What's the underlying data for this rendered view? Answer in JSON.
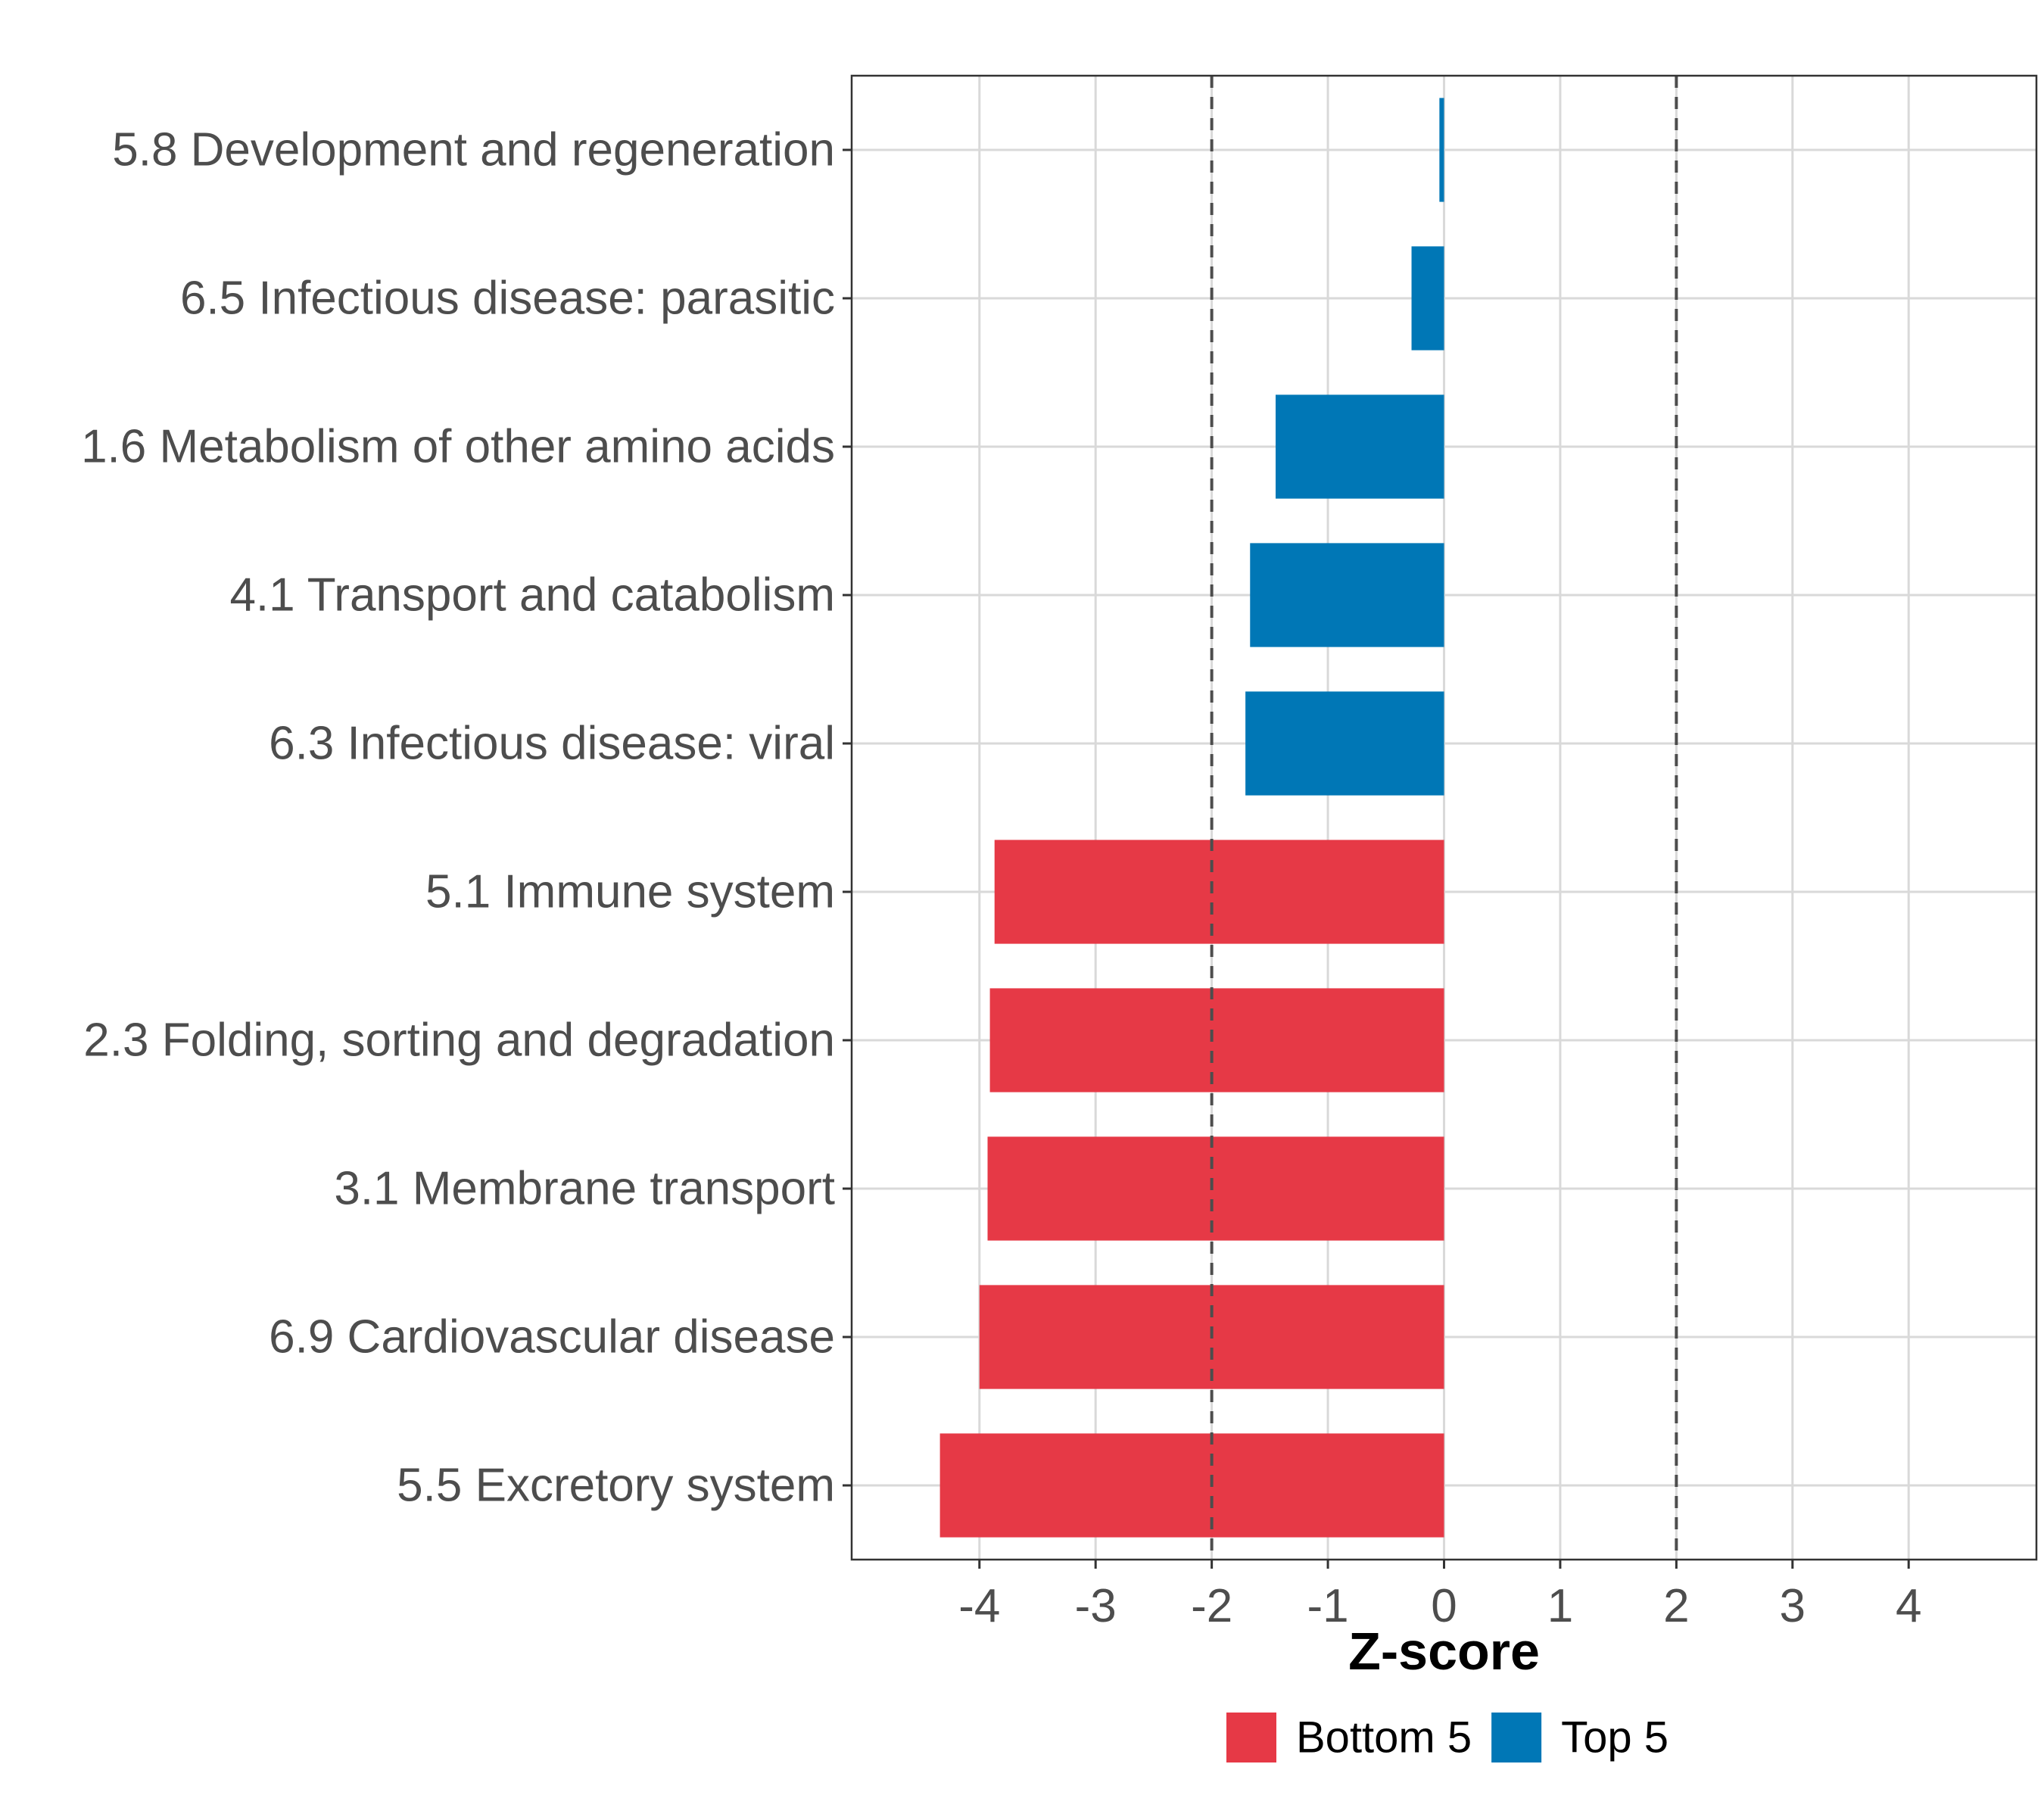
{
  "chart_data": {
    "type": "bar",
    "orientation": "horizontal",
    "title": "",
    "xlabel": "Z-score",
    "ylabel": "",
    "xlim": [
      -5.1,
      5.1
    ],
    "x_ticks": [
      -4,
      -3,
      -2,
      -1,
      0,
      1,
      2,
      3,
      4
    ],
    "x_tick_labels": [
      "-4",
      "-3",
      "-2",
      "-1",
      "0",
      "1",
      "2",
      "3",
      "4"
    ],
    "reference_lines": [
      -2,
      2
    ],
    "grid": true,
    "categories": [
      "5.8 Development and regeneration",
      "6.5 Infectious disease: parasitic",
      "1.6 Metabolism of other amino acids",
      "4.1 Transport and catabolism",
      "6.3 Infectious disease: viral",
      "5.1 Immune system",
      "2.3 Folding, sorting and degradation",
      "3.1 Membrane transport",
      "6.9 Cardiovascular disease",
      "5.5 Excretory system"
    ],
    "values": [
      -0.04,
      -0.28,
      -1.45,
      -1.67,
      -1.71,
      -3.87,
      -3.91,
      -3.93,
      -4.0,
      -4.34
    ],
    "groups": [
      "Top 5",
      "Top 5",
      "Top 5",
      "Top 5",
      "Top 5",
      "Bottom 5",
      "Bottom 5",
      "Bottom 5",
      "Bottom 5",
      "Bottom 5"
    ],
    "legend": {
      "position": "bottom",
      "entries": [
        {
          "label": "Bottom 5",
          "color": "#e63946"
        },
        {
          "label": "Top 5",
          "color": "#0077b6"
        }
      ]
    }
  }
}
